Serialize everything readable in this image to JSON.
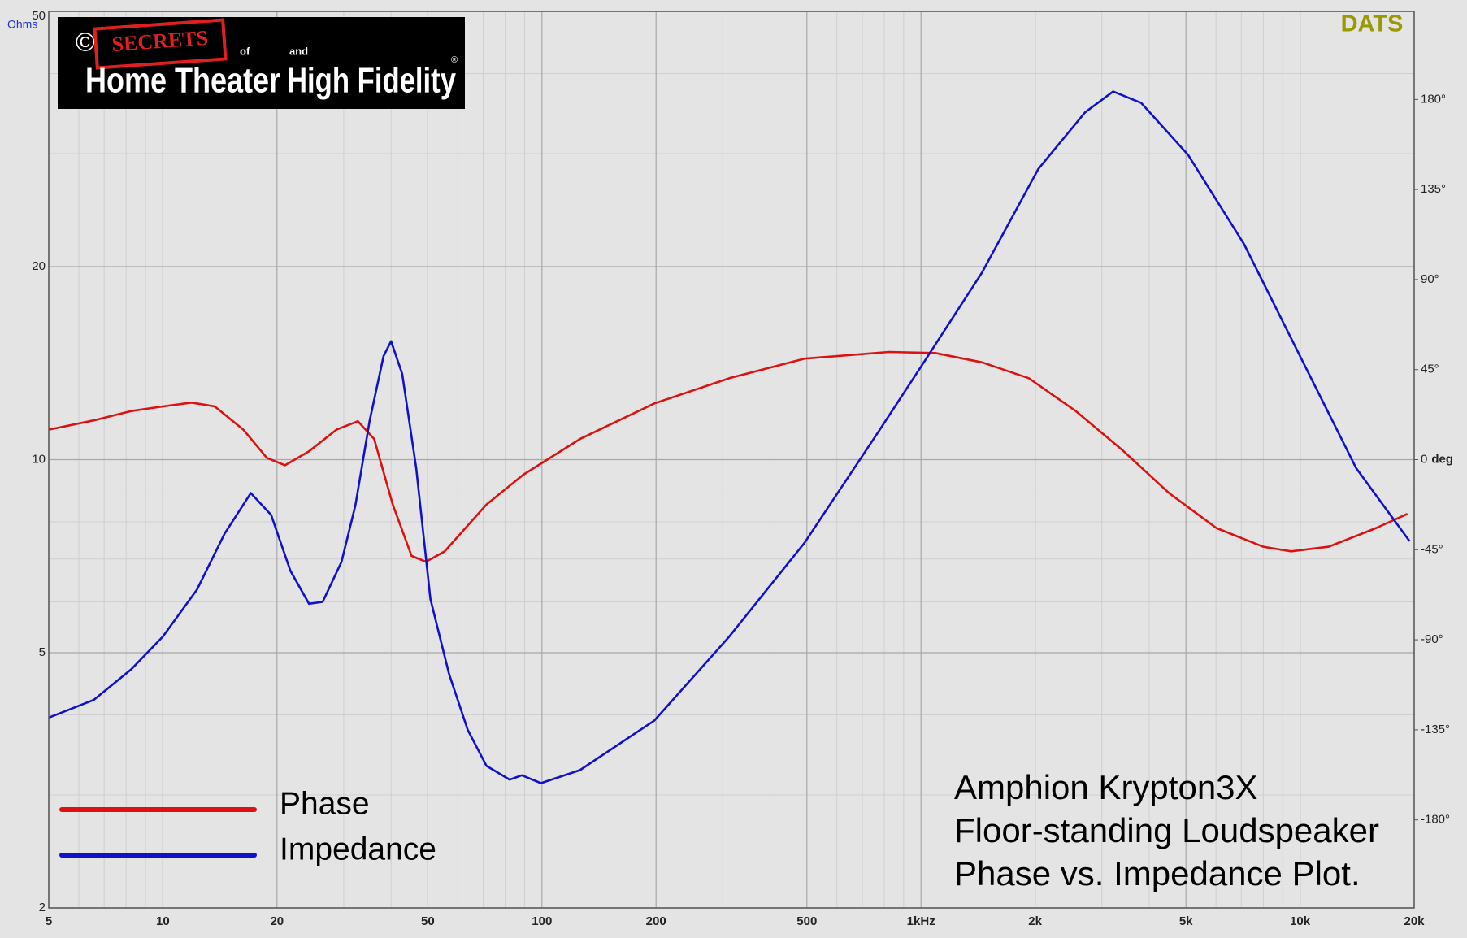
{
  "chart_data": {
    "type": "line",
    "title_lines": [
      "Amphion Krypton3X",
      "Floor-standing Loudspeaker",
      "Phase vs. Impedance Plot."
    ],
    "brand": "DATS",
    "ylabel": "Ohms",
    "y2label": "deg",
    "logo": {
      "copyright": "©",
      "secrets": "SECRETS",
      "of": "of",
      "home": "Home Theater",
      "and": "and",
      "hifi": "High Fidelity",
      "registered": "®"
    },
    "xscale": "log",
    "yscale": "log",
    "xlim": [
      5,
      20000
    ],
    "ylim": [
      2,
      50
    ],
    "y2lim": [
      -224,
      224
    ],
    "xticks": [
      5,
      10,
      20,
      50,
      100,
      200,
      500,
      {
        "value": 1000,
        "label": "1kHz"
      },
      {
        "value": 2000,
        "label": "2k"
      },
      {
        "value": 5000,
        "label": "5k"
      },
      {
        "value": 10000,
        "label": "10k"
      },
      {
        "value": 20000,
        "label": "20k"
      }
    ],
    "xminorticks": [
      6,
      7,
      8,
      9,
      30,
      40,
      60,
      70,
      80,
      90,
      300,
      400,
      600,
      700,
      800,
      900,
      3000,
      4000,
      6000,
      7000,
      8000,
      9000
    ],
    "yticks": [
      2,
      5,
      10,
      20,
      50
    ],
    "yminorticks": [
      3,
      4,
      6,
      7,
      8,
      9,
      30,
      40
    ],
    "y2ticks": [
      {
        "value": 180,
        "label": "180°"
      },
      {
        "value": 135,
        "label": "135°"
      },
      {
        "value": 90,
        "label": "90°"
      },
      {
        "value": 45,
        "label": "45°"
      },
      0,
      {
        "value": -45,
        "label": "-45°"
      },
      {
        "value": -90,
        "label": "-90°"
      },
      {
        "value": -135,
        "label": "-135°"
      },
      {
        "value": -180,
        "label": "-180°"
      }
    ],
    "grid": true,
    "legend": "lower left",
    "series": [
      {
        "name": "Phase",
        "color": "#dd1111",
        "axis": "y2",
        "x": [
          5,
          6.57,
          8.25,
          10,
          11.9,
          13.7,
          16.3,
          18.8,
          21,
          24.3,
          28.7,
          32.7,
          36.1,
          40.4,
          45.3,
          49.4,
          55.4,
          71.4,
          89.3,
          126,
          198,
          312,
          493,
          823,
          1090,
          1450,
          1925,
          2560,
          3400,
          4520,
          6010,
          7990,
          9470,
          11900,
          15900,
          19200
        ],
        "values": [
          15,
          19.6,
          24.3,
          26.6,
          28.5,
          26.6,
          15,
          0.9,
          -2.8,
          4.2,
          15,
          19.2,
          10.3,
          -22.4,
          -48.1,
          -51,
          -45.8,
          -22.4,
          -7.5,
          10.3,
          28.1,
          40.7,
          50.5,
          53.8,
          53.3,
          48.6,
          40.7,
          24.3,
          4.7,
          -16.8,
          -34.1,
          -43.5,
          -45.8,
          -43.5,
          -34.1,
          -27.1
        ]
      },
      {
        "name": "Impedance",
        "color": "#1111cc",
        "x": [
          5,
          6.57,
          8.25,
          10,
          12.3,
          14.55,
          17.06,
          19.3,
          21.7,
          24.3,
          26.4,
          29.6,
          32.2,
          35.1,
          38.2,
          40,
          42.8,
          46.6,
          50.8,
          56.9,
          63.7,
          71.4,
          82.2,
          88.5,
          99.4,
          125.9,
          198,
          312,
          493,
          776,
          1003,
          1450,
          2040,
          2710,
          3213,
          3810,
          5060,
          7110,
          10000,
          14060,
          19450
        ],
        "values": [
          3.96,
          4.22,
          4.71,
          5.3,
          6.27,
          7.67,
          8.87,
          8.2,
          6.71,
          5.96,
          6.0,
          6.93,
          8.49,
          11.48,
          14.5,
          15.3,
          13.6,
          9.7,
          6.06,
          4.63,
          3.79,
          3.33,
          3.17,
          3.22,
          3.13,
          3.28,
          3.92,
          5.3,
          7.42,
          11.1,
          14.0,
          19.6,
          28.4,
          34.8,
          37.5,
          36.0,
          29.9,
          21.7,
          14.5,
          9.7,
          7.46
        ]
      }
    ]
  }
}
